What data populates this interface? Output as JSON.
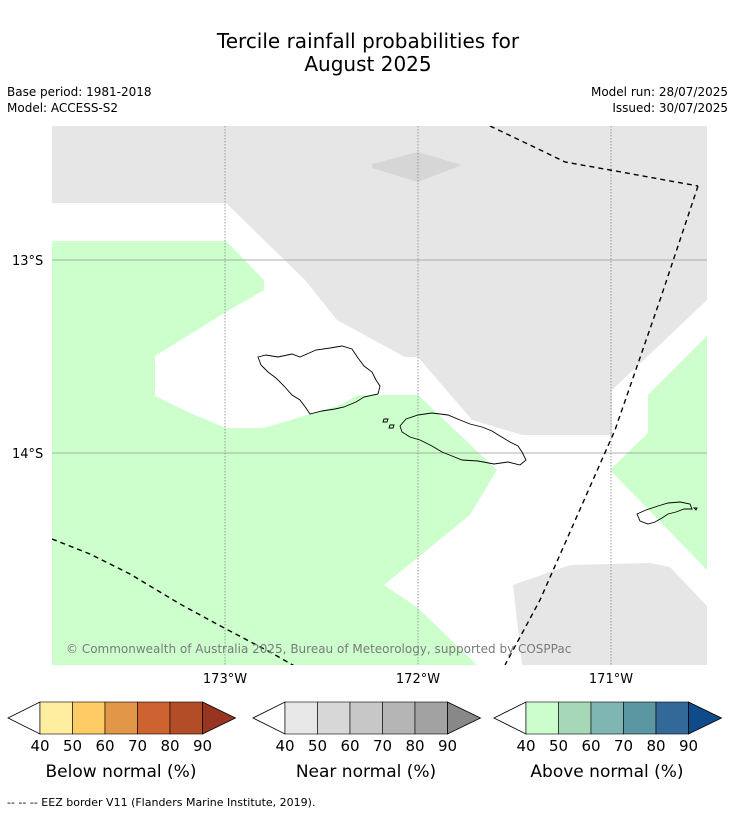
{
  "title_line1": "Tercile rainfall probabilities for",
  "title_line2": "August 2025",
  "meta": {
    "base_period": "Base period: 1981-2018",
    "model": "Model: ACCESS-S2",
    "model_run": "Model run: 28/07/2025",
    "issued": "Issued: 30/07/2025"
  },
  "map": {
    "lat_labels": [
      "13°S",
      "14°S"
    ],
    "lon_labels": [
      "173°W",
      "172°W",
      "171°W"
    ],
    "copyright": "© Commonwealth of Australia 2025, Bureau of Meteorology, supported by COSPPac",
    "colors": {
      "no_signal": "#e6e6e6",
      "near_normal_50": "#d6d6d6",
      "above_normal_40": "#ccffcc",
      "background": "#ffffff"
    }
  },
  "colorbars": [
    {
      "label": "Below normal (%)",
      "ticks": [
        "40",
        "50",
        "60",
        "70",
        "80",
        "90"
      ],
      "colors": [
        "#ffeea0",
        "#fecb64",
        "#e29647",
        "#cc6330",
        "#b34d27",
        "#973520"
      ]
    },
    {
      "label": "Near normal (%)",
      "ticks": [
        "40",
        "50",
        "60",
        "70",
        "80",
        "90"
      ],
      "colors": [
        "#e7e7e7",
        "#d7d7d7",
        "#c7c7c7",
        "#b5b5b5",
        "#a2a2a2",
        "#888888"
      ]
    },
    {
      "label": "Above normal (%)",
      "ticks": [
        "40",
        "50",
        "60",
        "70",
        "80",
        "90"
      ],
      "colors": [
        "#ccfdcc",
        "#a6d8b8",
        "#80b6b2",
        "#5a97a2",
        "#326998",
        "#0f4a8a"
      ]
    }
  ],
  "footnote": "--  --  -- EEZ border V11 (Flanders Marine Institute, 2019)."
}
